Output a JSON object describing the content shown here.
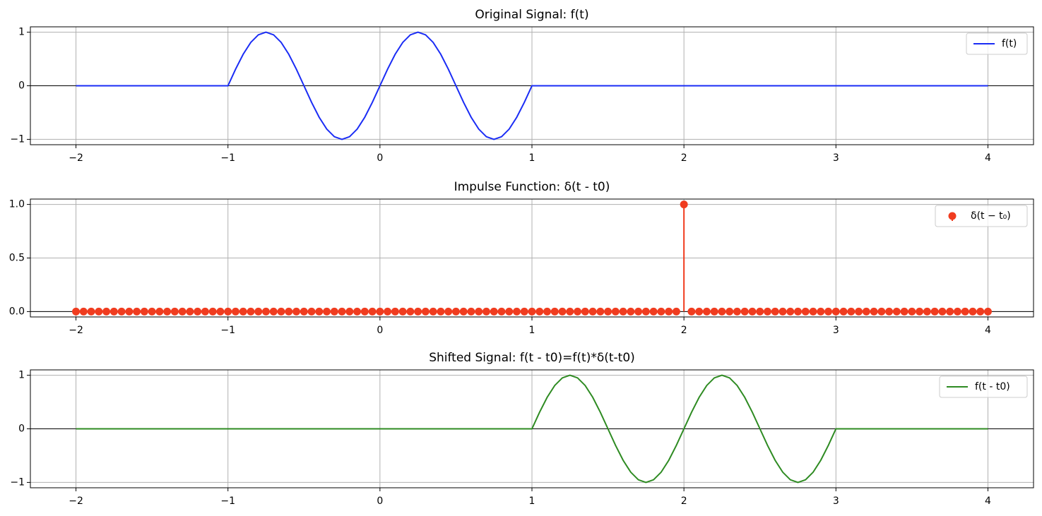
{
  "chart_data": [
    {
      "type": "line",
      "title": "Original Signal: f(t)",
      "x": [
        -2,
        -1,
        -0.95,
        -0.9,
        -0.85,
        -0.8,
        -0.75,
        -0.7,
        -0.65,
        -0.6,
        -0.55,
        -0.5,
        -0.45,
        -0.4,
        -0.35,
        -0.3,
        -0.25,
        -0.2,
        -0.15,
        -0.1,
        -0.05,
        0,
        0.05,
        0.1,
        0.15,
        0.2,
        0.25,
        0.3,
        0.35,
        0.4,
        0.45,
        0.5,
        0.55,
        0.6,
        0.65,
        0.7,
        0.75,
        0.8,
        0.85,
        0.9,
        0.95,
        1,
        4
      ],
      "series": [
        {
          "name": "f(t)",
          "color": "#1a2cf5",
          "values": [
            0,
            0,
            0.309,
            0.588,
            0.809,
            0.951,
            1,
            0.951,
            0.809,
            0.588,
            0.309,
            0,
            -0.309,
            -0.588,
            -0.809,
            -0.951,
            -1,
            -0.951,
            -0.809,
            -0.588,
            -0.309,
            0,
            0.309,
            0.588,
            0.809,
            0.951,
            1,
            0.951,
            0.809,
            0.588,
            0.309,
            0,
            -0.309,
            -0.588,
            -0.809,
            -0.951,
            -1,
            -0.951,
            -0.809,
            -0.588,
            -0.309,
            0,
            0
          ]
        }
      ],
      "xlim": [
        -2.3,
        4.3
      ],
      "ylim": [
        -1.1,
        1.1
      ],
      "xticks": [
        {
          "value": -2,
          "label": "−2"
        },
        {
          "value": -1,
          "label": "−1"
        },
        0,
        1,
        2,
        3,
        4
      ],
      "yticks": [
        {
          "value": -1,
          "label": "−1"
        },
        0,
        1
      ],
      "hlines": [
        0
      ],
      "grid": true,
      "legend": "upper right"
    },
    {
      "type": "stem",
      "title": "Impulse Function: δ(t - t0)",
      "x": [
        -2,
        -1.95,
        -1.9,
        -1.85,
        -1.8,
        -1.75,
        -1.7,
        -1.65,
        -1.6,
        -1.55,
        -1.5,
        -1.45,
        -1.4,
        -1.35,
        -1.3,
        -1.25,
        -1.2,
        -1.15,
        -1.1,
        -1.05,
        -1,
        -0.95,
        -0.9,
        -0.85,
        -0.8,
        -0.75,
        -0.7,
        -0.65,
        -0.6,
        -0.55,
        -0.5,
        -0.45,
        -0.4,
        -0.35,
        -0.3,
        -0.25,
        -0.2,
        -0.15,
        -0.1,
        -0.05,
        0,
        0.05,
        0.1,
        0.15,
        0.2,
        0.25,
        0.3,
        0.35,
        0.4,
        0.45,
        0.5,
        0.55,
        0.6,
        0.65,
        0.7,
        0.75,
        0.8,
        0.85,
        0.9,
        0.95,
        1,
        1.05,
        1.1,
        1.15,
        1.2,
        1.25,
        1.3,
        1.35,
        1.4,
        1.45,
        1.5,
        1.55,
        1.6,
        1.65,
        1.7,
        1.75,
        1.8,
        1.85,
        1.9,
        1.95,
        2,
        2.05,
        2.1,
        2.15,
        2.2,
        2.25,
        2.3,
        2.35,
        2.4,
        2.45,
        2.5,
        2.55,
        2.6,
        2.65,
        2.7,
        2.75,
        2.8,
        2.85,
        2.9,
        2.95,
        3,
        3.05,
        3.1,
        3.15,
        3.2,
        3.25,
        3.3,
        3.35,
        3.4,
        3.45,
        3.5,
        3.55,
        3.6,
        3.65,
        3.7,
        3.75,
        3.8,
        3.85,
        3.9,
        3.95,
        4
      ],
      "series": [
        {
          "name": "δ(t − t₀)",
          "color": "#f03c1f",
          "values": [
            0,
            0,
            0,
            0,
            0,
            0,
            0,
            0,
            0,
            0,
            0,
            0,
            0,
            0,
            0,
            0,
            0,
            0,
            0,
            0,
            0,
            0,
            0,
            0,
            0,
            0,
            0,
            0,
            0,
            0,
            0,
            0,
            0,
            0,
            0,
            0,
            0,
            0,
            0,
            0,
            0,
            0,
            0,
            0,
            0,
            0,
            0,
            0,
            0,
            0,
            0,
            0,
            0,
            0,
            0,
            0,
            0,
            0,
            0,
            0,
            0,
            0,
            0,
            0,
            0,
            0,
            0,
            0,
            0,
            0,
            0,
            0,
            0,
            0,
            0,
            0,
            0,
            0,
            0,
            0,
            1,
            0,
            0,
            0,
            0,
            0,
            0,
            0,
            0,
            0,
            0,
            0,
            0,
            0,
            0,
            0,
            0,
            0,
            0,
            0,
            0,
            0,
            0,
            0,
            0,
            0,
            0,
            0,
            0,
            0,
            0,
            0,
            0,
            0,
            0,
            0,
            0,
            0,
            0,
            0,
            0
          ]
        }
      ],
      "xlim": [
        -2.3,
        4.3
      ],
      "ylim": [
        -0.05,
        1.05
      ],
      "xticks": [
        {
          "value": -2,
          "label": "−2"
        },
        {
          "value": -1,
          "label": "−1"
        },
        0,
        1,
        2,
        3,
        4
      ],
      "yticks": [
        {
          "value": 0,
          "label": "0.0"
        },
        {
          "value": 0.5,
          "label": "0.5"
        },
        {
          "value": 1,
          "label": "1.0"
        }
      ],
      "hlines": [
        0
      ],
      "grid": true,
      "legend": "upper right"
    },
    {
      "type": "line",
      "title": "Shifted Signal: f(t - t0)=f(t)*δ(t-t0)",
      "x": [
        -2,
        1,
        1.05,
        1.1,
        1.15,
        1.2,
        1.25,
        1.3,
        1.35,
        1.4,
        1.45,
        1.5,
        1.55,
        1.6,
        1.65,
        1.7,
        1.75,
        1.8,
        1.85,
        1.9,
        1.95,
        2,
        2.05,
        2.1,
        2.15,
        2.2,
        2.25,
        2.3,
        2.35,
        2.4,
        2.45,
        2.5,
        2.55,
        2.6,
        2.65,
        2.7,
        2.75,
        2.8,
        2.85,
        2.9,
        2.95,
        3,
        4
      ],
      "series": [
        {
          "name": "f(t - t0)",
          "color": "#2e8b22",
          "values": [
            0,
            0,
            0.309,
            0.588,
            0.809,
            0.951,
            1,
            0.951,
            0.809,
            0.588,
            0.309,
            0,
            -0.309,
            -0.588,
            -0.809,
            -0.951,
            -1,
            -0.951,
            -0.809,
            -0.588,
            -0.309,
            0,
            0.309,
            0.588,
            0.809,
            0.951,
            1,
            0.951,
            0.809,
            0.588,
            0.309,
            0,
            -0.309,
            -0.588,
            -0.809,
            -0.951,
            -1,
            -0.951,
            -0.809,
            -0.588,
            -0.309,
            0,
            0
          ]
        }
      ],
      "xlim": [
        -2.3,
        4.3
      ],
      "ylim": [
        -1.1,
        1.1
      ],
      "xticks": [
        {
          "value": -2,
          "label": "−2"
        },
        {
          "value": -1,
          "label": "−1"
        },
        0,
        1,
        2,
        3,
        4
      ],
      "yticks": [
        {
          "value": -1,
          "label": "−1"
        },
        0,
        1
      ],
      "hlines": [
        0
      ],
      "grid": true,
      "legend": "upper right"
    }
  ]
}
